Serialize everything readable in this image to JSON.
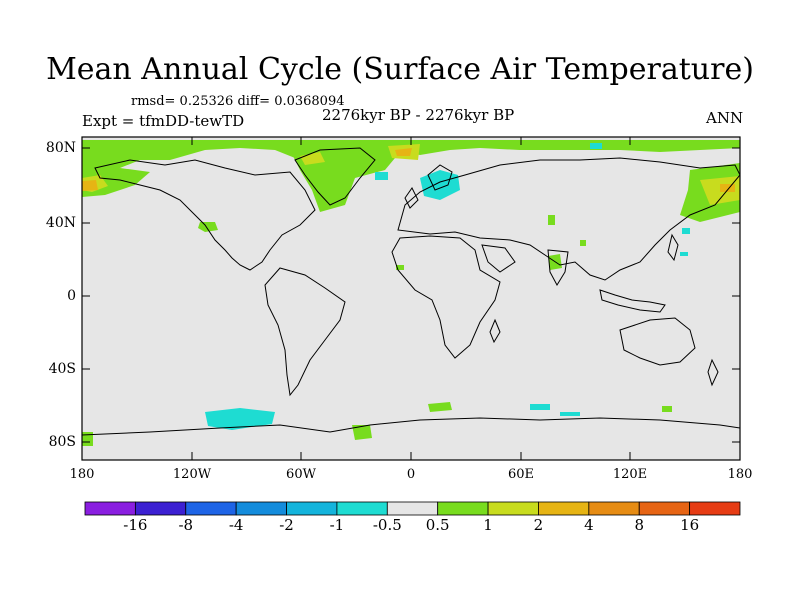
{
  "title": "Mean Annual Cycle (Surface Air Temperature)",
  "stats": "rmsd= 0.25326 diff= 0.0368094",
  "experiment": "Expt = tfmDD-tewTD",
  "period": "2276kyr BP - 2276kyr BP",
  "season": "ANN",
  "lat_labels": [
    "80N",
    "40N",
    "0",
    "40S",
    "80S"
  ],
  "lon_labels": [
    "180",
    "120W",
    "60W",
    "0",
    "60E",
    "120E",
    "180"
  ],
  "colorbar": {
    "colors": [
      "#8a1ee0",
      "#3c20d2",
      "#1e64e6",
      "#148cdc",
      "#14b4dc",
      "#1edcd2",
      "#e6e6e6",
      "#78dc1e",
      "#c8dc1e",
      "#e6b414",
      "#e68c14",
      "#e66414",
      "#e63c14"
    ],
    "tick_labels": [
      "-16",
      "-8",
      "-4",
      "-2",
      "-1",
      "-0.5",
      "0.5",
      "1",
      "2",
      "4",
      "8",
      "16"
    ]
  },
  "colors": {
    "background_field": "#e6e6e6",
    "coast": "#000000"
  }
}
